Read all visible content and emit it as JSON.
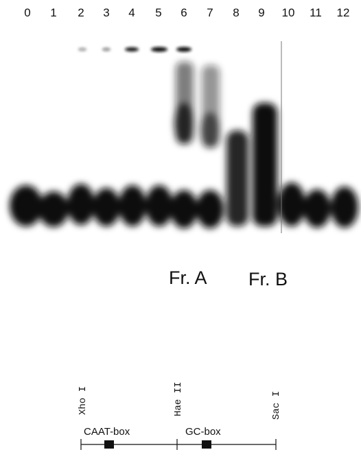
{
  "lanes": [
    "0",
    "1",
    "2",
    "3",
    "4",
    "5",
    "6",
    "7",
    "8",
    "9",
    "10",
    "11",
    "12"
  ],
  "fractions": [
    "Fr. A",
    "Fr. B"
  ],
  "map": {
    "sites": [
      "Xho I",
      "Hae II",
      "Sac I"
    ],
    "boxes": [
      "CAAT-box",
      "GC-box"
    ]
  }
}
